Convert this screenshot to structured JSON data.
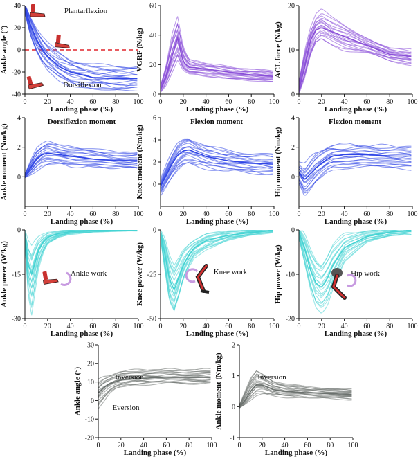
{
  "chart_data": [
    {
      "id": "ankle-angle",
      "type": "line",
      "title": "",
      "xlabel": "Landing phase (%)",
      "ylabel": "Ankle angle (°)",
      "xlim": [
        0,
        100
      ],
      "ylim": [
        -40,
        40
      ],
      "xticks": [
        0,
        20,
        40,
        60,
        80,
        100
      ],
      "yticks": [
        -40,
        -20,
        0,
        20,
        40
      ],
      "color": "#2f45e6",
      "reference_line": 0,
      "annotations": [
        "Plantarflexion",
        "Dorsiflexion"
      ],
      "x": [
        0,
        5,
        10,
        15,
        20,
        30,
        40,
        60,
        80,
        100
      ],
      "mean": [
        38,
        22,
        10,
        1,
        -6,
        -15,
        -20,
        -25,
        -26,
        -26
      ],
      "lower": [
        33,
        12,
        -2,
        -12,
        -19,
        -28,
        -33,
        -36,
        -37,
        -37
      ],
      "upper": [
        42,
        30,
        20,
        12,
        6,
        -2,
        -8,
        -13,
        -14,
        -14
      ]
    },
    {
      "id": "vgrf",
      "type": "line",
      "title": "",
      "xlabel": "Landing phase (%)",
      "ylabel": "VGRF (N/kg)",
      "xlim": [
        0,
        100
      ],
      "ylim": [
        0,
        60
      ],
      "xticks": [
        0,
        20,
        40,
        60,
        80,
        100
      ],
      "yticks": [
        0,
        20,
        40,
        60
      ],
      "color": "#8a4fd8",
      "x": [
        0,
        5,
        10,
        15,
        20,
        25,
        30,
        40,
        60,
        80,
        100
      ],
      "mean": [
        3,
        12,
        25,
        38,
        22,
        18,
        18,
        17,
        15,
        13,
        12
      ],
      "lower": [
        1,
        6,
        14,
        22,
        15,
        13,
        13,
        12,
        10,
        9,
        8
      ],
      "upper": [
        6,
        20,
        40,
        52,
        32,
        24,
        23,
        21,
        19,
        17,
        16
      ]
    },
    {
      "id": "acl-force",
      "type": "line",
      "title": "",
      "xlabel": "Landing phase (%)",
      "ylabel": "ACL force (N/kg)",
      "xlim": [
        0,
        100
      ],
      "ylim": [
        0,
        20
      ],
      "xticks": [
        0,
        20,
        40,
        60,
        80,
        100
      ],
      "yticks": [
        0,
        10,
        20
      ],
      "color": "#8a4fd8",
      "x": [
        0,
        5,
        10,
        15,
        20,
        30,
        40,
        60,
        80,
        100
      ],
      "mean": [
        1,
        6,
        12,
        14.5,
        15,
        14,
        13,
        11,
        9,
        8.5
      ],
      "lower": [
        0,
        3,
        8,
        11,
        12,
        11,
        10,
        9,
        7.5,
        6.5
      ],
      "upper": [
        3,
        10,
        15,
        18,
        19,
        17,
        15.5,
        13,
        10.5,
        10
      ]
    },
    {
      "id": "ankle-moment",
      "type": "line",
      "title": "Dorsiflexion moment",
      "xlabel": "Landing phase (%)",
      "ylabel": "Ankle moment (Nm/kg)",
      "xlim": [
        0,
        100
      ],
      "ylim": [
        -2,
        4
      ],
      "xticks": [
        0,
        20,
        40,
        60,
        80,
        100
      ],
      "yticks": [
        0,
        2,
        4
      ],
      "color": "#2f45e6",
      "x": [
        0,
        5,
        10,
        15,
        20,
        30,
        40,
        60,
        80,
        100
      ],
      "mean": [
        0,
        0.6,
        1.2,
        1.5,
        1.6,
        1.5,
        1.4,
        1.2,
        1.1,
        1.1
      ],
      "lower": [
        -0.1,
        0.1,
        0.4,
        0.7,
        0.8,
        0.8,
        0.7,
        0.6,
        0.6,
        0.5
      ],
      "upper": [
        0.2,
        1.1,
        1.9,
        2.2,
        2.4,
        2.2,
        2.1,
        1.9,
        1.7,
        1.7
      ]
    },
    {
      "id": "knee-moment",
      "type": "line",
      "title": "Flexion moment",
      "xlabel": "Landing phase (%)",
      "ylabel": "Knee moment (Nm/kg)",
      "xlim": [
        0,
        100
      ],
      "ylim": [
        -2,
        6
      ],
      "xticks": [
        0,
        20,
        40,
        60,
        80,
        100
      ],
      "yticks": [
        0,
        2,
        4,
        6
      ],
      "color": "#2f45e6",
      "x": [
        0,
        5,
        10,
        15,
        20,
        25,
        30,
        40,
        60,
        80,
        100
      ],
      "mean": [
        -0.2,
        0.8,
        1.8,
        2.6,
        3.0,
        3.1,
        2.9,
        2.5,
        2.1,
        1.9,
        1.8
      ],
      "lower": [
        -1.0,
        -0.2,
        0.6,
        1.2,
        1.6,
        1.7,
        1.6,
        1.4,
        1.1,
        1.0,
        0.8
      ],
      "upper": [
        0.5,
        1.8,
        2.9,
        3.7,
        4.1,
        4.2,
        3.9,
        3.5,
        3.1,
        2.8,
        2.7
      ]
    },
    {
      "id": "hip-moment",
      "type": "line",
      "title": "Flexion moment",
      "xlabel": "Landing phase (%)",
      "ylabel": "Hip moment (Nm/kg)",
      "xlim": [
        0,
        100
      ],
      "ylim": [
        -2,
        4
      ],
      "xticks": [
        0,
        20,
        40,
        60,
        80,
        100
      ],
      "yticks": [
        0,
        2,
        4
      ],
      "color": "#2f45e6",
      "x": [
        0,
        5,
        10,
        15,
        20,
        25,
        30,
        40,
        60,
        80,
        100
      ],
      "mean": [
        0.3,
        -0.2,
        0.2,
        0.6,
        0.9,
        1.2,
        1.4,
        1.5,
        1.5,
        1.4,
        1.4
      ],
      "lower": [
        -0.5,
        -1.4,
        -1.0,
        -0.5,
        -0.1,
        0.3,
        0.5,
        0.6,
        0.6,
        0.6,
        0.5
      ],
      "upper": [
        1.0,
        0.8,
        1.3,
        1.7,
        1.9,
        2.1,
        2.2,
        2.2,
        2.2,
        2.1,
        2.1
      ]
    },
    {
      "id": "ankle-power",
      "type": "line",
      "title": "",
      "xlabel": "Landing phase (%)",
      "ylabel": "Ankle power (W/kg)",
      "xlim": [
        0,
        100
      ],
      "ylim": [
        -30,
        0
      ],
      "xticks": [
        0,
        20,
        40,
        60,
        80,
        100
      ],
      "yticks": [
        -30,
        -15,
        0
      ],
      "color": "#45d3d3",
      "annotations": [
        "Ankle work"
      ],
      "x": [
        0,
        3,
        6,
        9,
        12,
        16,
        20,
        30,
        40,
        60,
        80,
        100
      ],
      "mean": [
        -2,
        -12,
        -15,
        -11,
        -7,
        -4,
        -2.5,
        -1.2,
        -0.6,
        -0.2,
        0,
        0.1
      ],
      "lower": [
        -5,
        -22,
        -28,
        -20,
        -13,
        -8,
        -5,
        -2.5,
        -1.5,
        -0.8,
        -0.5,
        -0.4
      ],
      "upper": [
        0,
        -4,
        -6,
        -4,
        -2.5,
        -1.5,
        -0.8,
        -0.2,
        0.2,
        0.4,
        0.5,
        0.6
      ]
    },
    {
      "id": "knee-power",
      "type": "line",
      "title": "",
      "xlabel": "Landing phase (%)",
      "ylabel": "Knee power (W/kg)",
      "xlim": [
        0,
        100
      ],
      "ylim": [
        -50,
        0
      ],
      "xticks": [
        0,
        20,
        40,
        60,
        80,
        100
      ],
      "yticks": [
        -50,
        -25,
        0
      ],
      "color": "#45d3d3",
      "annotations": [
        "Knee work"
      ],
      "x": [
        0,
        4,
        8,
        12,
        16,
        20,
        25,
        30,
        40,
        60,
        80,
        100
      ],
      "mean": [
        -2,
        -14,
        -28,
        -34,
        -27,
        -20,
        -14,
        -10,
        -6,
        -3,
        -1.5,
        0
      ],
      "lower": [
        -5,
        -24,
        -42,
        -48,
        -40,
        -30,
        -22,
        -16,
        -11,
        -6,
        -3,
        -1.5
      ],
      "upper": [
        0,
        -5,
        -15,
        -20,
        -15,
        -10,
        -7,
        -5,
        -2,
        -0.5,
        0.5,
        1.5
      ]
    },
    {
      "id": "hip-power",
      "type": "line",
      "title": "",
      "xlabel": "Landing phase (%)",
      "ylabel": "Hip power (W/kg)",
      "xlim": [
        0,
        100
      ],
      "ylim": [
        -20,
        0
      ],
      "xticks": [
        0,
        20,
        40,
        60,
        80,
        100
      ],
      "yticks": [
        -20,
        -10,
        0
      ],
      "color": "#45d3d3",
      "annotations": [
        "Hip work"
      ],
      "x": [
        0,
        5,
        10,
        15,
        20,
        25,
        30,
        40,
        60,
        80,
        100
      ],
      "mean": [
        -0.5,
        -4,
        -9,
        -12,
        -13,
        -11,
        -8,
        -4,
        -1.5,
        -0.5,
        0
      ],
      "lower": [
        -2,
        -8,
        -14,
        -18,
        -19,
        -17,
        -13,
        -7,
        -3,
        -1.5,
        -1
      ],
      "upper": [
        0.5,
        -1,
        -4,
        -6,
        -7,
        -5,
        -3,
        -1,
        0,
        0.5,
        0.8
      ]
    },
    {
      "id": "ankle-angle-frontal",
      "type": "line",
      "title": "",
      "xlabel": "Landing phase (%)",
      "ylabel": "Ankle angle (°)",
      "xlim": [
        0,
        100
      ],
      "ylim": [
        -20,
        30
      ],
      "xticks": [
        0,
        20,
        40,
        60,
        80,
        100
      ],
      "yticks": [
        -20,
        -10,
        0,
        10,
        20,
        30
      ],
      "color": "#6b716e",
      "annotations": [
        "Inversion",
        "Eversion"
      ],
      "x": [
        0,
        5,
        10,
        15,
        20,
        30,
        40,
        60,
        80,
        100
      ],
      "mean": [
        4,
        7,
        9,
        10,
        11,
        12,
        12,
        12.5,
        12.5,
        12.5
      ],
      "lower": [
        -4,
        0,
        4,
        6,
        7,
        8,
        8.5,
        9,
        9,
        9
      ],
      "upper": [
        11,
        13,
        14,
        15,
        16,
        16.5,
        17,
        17,
        17,
        17
      ]
    },
    {
      "id": "ankle-moment-frontal",
      "type": "line",
      "title": "",
      "xlabel": "Landing phase (%)",
      "ylabel": "Ankle moment (Nm/kg)",
      "xlim": [
        0,
        100
      ],
      "ylim": [
        -1,
        2
      ],
      "xticks": [
        0,
        20,
        40,
        60,
        80,
        100
      ],
      "yticks": [
        -1,
        0,
        1,
        2
      ],
      "color": "#6b716e",
      "annotations": [
        "Inversion"
      ],
      "x": [
        0,
        5,
        10,
        15,
        20,
        30,
        40,
        60,
        80,
        100
      ],
      "mean": [
        0,
        0.2,
        0.5,
        0.7,
        0.7,
        0.55,
        0.5,
        0.45,
        0.42,
        0.4
      ],
      "lower": [
        -0.05,
        0.05,
        0.2,
        0.35,
        0.4,
        0.35,
        0.3,
        0.28,
        0.25,
        0.22
      ],
      "upper": [
        0.05,
        0.5,
        0.95,
        1.2,
        1.1,
        0.85,
        0.75,
        0.65,
        0.6,
        0.58
      ]
    }
  ]
}
